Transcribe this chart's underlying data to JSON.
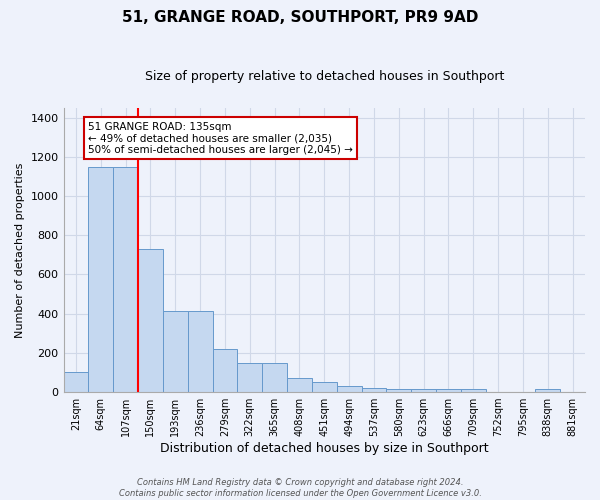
{
  "title1": "51, GRANGE ROAD, SOUTHPORT, PR9 9AD",
  "title2": "Size of property relative to detached houses in Southport",
  "xlabel": "Distribution of detached houses by size in Southport",
  "ylabel": "Number of detached properties",
  "categories": [
    "21sqm",
    "64sqm",
    "107sqm",
    "150sqm",
    "193sqm",
    "236sqm",
    "279sqm",
    "322sqm",
    "365sqm",
    "408sqm",
    "451sqm",
    "494sqm",
    "537sqm",
    "580sqm",
    "623sqm",
    "666sqm",
    "709sqm",
    "752sqm",
    "795sqm",
    "838sqm",
    "881sqm"
  ],
  "values": [
    100,
    1150,
    1150,
    730,
    415,
    415,
    220,
    150,
    150,
    70,
    50,
    30,
    20,
    15,
    15,
    15,
    15,
    0,
    0,
    15,
    0
  ],
  "bar_color": "#c5d8f0",
  "bar_edge_color": "#6699cc",
  "red_line_x": 2.5,
  "annotation_text": "51 GRANGE ROAD: 135sqm\n← 49% of detached houses are smaller (2,035)\n50% of semi-detached houses are larger (2,045) →",
  "annotation_box_color": "#ffffff",
  "annotation_box_edge": "#cc0000",
  "background_color": "#eef2fb",
  "grid_color": "#d0d8e8",
  "footer_text": "Contains HM Land Registry data © Crown copyright and database right 2024.\nContains public sector information licensed under the Open Government Licence v3.0.",
  "ylim": [
    0,
    1450
  ],
  "yticks": [
    0,
    200,
    400,
    600,
    800,
    1000,
    1200,
    1400
  ],
  "title1_fontsize": 11,
  "title2_fontsize": 9,
  "ylabel_fontsize": 8,
  "xlabel_fontsize": 9
}
